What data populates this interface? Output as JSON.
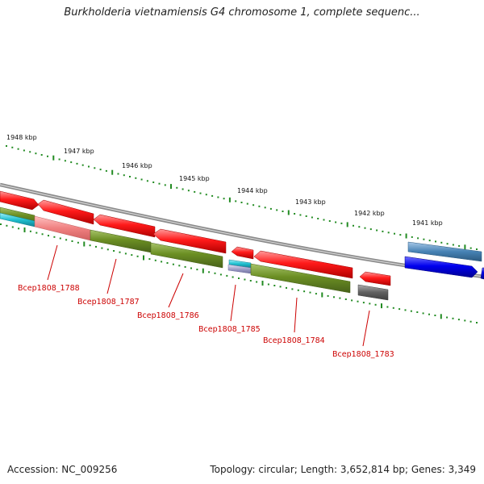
{
  "title": "Burkholderia vietnamiensis G4 chromosome 1, complete sequenc...",
  "accession": "Accession: NC_009256",
  "summary": "Topology: circular; Length: 3,652,814 bp; Genes: 3,349",
  "scale": {
    "unit": "kbp",
    "labels": [
      "1948 kbp",
      "1947 kbp",
      "1946 kbp",
      "1945 kbp",
      "1944 kbp",
      "1943 kbp",
      "1942 kbp",
      "1941 kbp"
    ]
  },
  "genes": [
    {
      "label": "Bcep1808_1788"
    },
    {
      "label": "Bcep1808_1787"
    },
    {
      "label": "Bcep1808_1786"
    },
    {
      "label": "Bcep1808_1785"
    },
    {
      "label": "Bcep1808_1784"
    },
    {
      "label": "Bcep1808_1783"
    }
  ],
  "colors": {
    "gene_red": "#ff0000",
    "gene_olive": "#6b8e23",
    "gene_pink": "#f08080",
    "gene_cyan": "#20c0d0",
    "gene_gray": "#606060",
    "gene_blue": "#0000ee",
    "gene_steel": "#4682b4",
    "backbone": "#888888",
    "tick_green": "#228b22",
    "label_red": "#cc0000"
  }
}
